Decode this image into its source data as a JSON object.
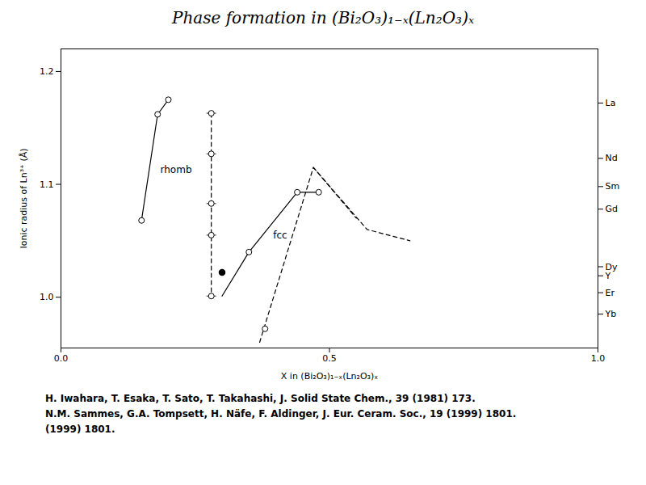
{
  "chart_data": {
    "type": "line",
    "title": "Phase formation in (Bi₂O₃)₁₋ₓ(Ln₂O₃)ₓ",
    "x_label": "X in (Bi₂O₃)₁₋ₓ(Ln₂O₃)ₓ",
    "y_label": "Ionic radius of Ln³⁺ (Å)",
    "xlim": [
      0,
      1.0
    ],
    "ylim": [
      0.955,
      1.22
    ],
    "xticks": [
      {
        "value": 0,
        "label": "0.0"
      },
      0.5,
      {
        "value": 1.0,
        "label": "1.0"
      }
    ],
    "yticks": [
      {
        "value": 1.0,
        "label": "1.0"
      },
      1.1,
      1.2
    ],
    "y2lim": [
      0.955,
      1.22
    ],
    "y2ticks": [
      {
        "value": 1.172,
        "label": "La"
      },
      {
        "value": 1.123,
        "label": "Nd"
      },
      {
        "value": 1.098,
        "label": "Sm"
      },
      {
        "value": 1.078,
        "label": "Gd"
      },
      {
        "value": 1.027,
        "label": "Dy"
      },
      {
        "value": 1.019,
        "label": "Y"
      },
      {
        "value": 1.004,
        "label": "Er"
      },
      {
        "value": 0.985,
        "label": "Yb"
      }
    ],
    "series": [
      {
        "type": "line",
        "x": [
          0.15,
          0.18,
          0.2
        ],
        "values": [
          1.068,
          1.162,
          1.175
        ],
        "line_style": "solid",
        "marker": "open_circle"
      },
      {
        "type": "line",
        "x": [
          0.28,
          0.28,
          0.28,
          0.28,
          0.28
        ],
        "values": [
          1.163,
          1.127,
          1.083,
          1.055,
          1.001
        ],
        "line_style": "dashed",
        "marker": "open_circle_tick"
      },
      {
        "type": "line",
        "x": [
          0.3,
          0.35,
          0.44,
          0.48
        ],
        "values": [
          1.001,
          1.04,
          1.093,
          1.093
        ],
        "line_style": "solid",
        "marker": "none"
      },
      {
        "type": "scatter",
        "x": [
          0.3
        ],
        "values": [
          1.022
        ],
        "marker": "filled_circle"
      },
      {
        "type": "scatter",
        "x": [
          0.35,
          0.44,
          0.48,
          0.38
        ],
        "values": [
          1.04,
          1.093,
          1.093,
          0.972
        ],
        "marker": "open_circle"
      },
      {
        "type": "line",
        "x": [
          0.37,
          0.47,
          0.55
        ],
        "values": [
          0.96,
          1.115,
          1.07
        ],
        "line_style": "dashed",
        "marker": "none"
      },
      {
        "type": "line",
        "x": [
          0.47,
          0.57,
          0.65
        ],
        "values": [
          1.115,
          1.06,
          1.05
        ],
        "line_style": "dashed",
        "marker": "none"
      }
    ],
    "annotations": [
      {
        "text": "rhomb",
        "x": 0.185,
        "y": 1.113
      },
      {
        "text": "fcc",
        "x": 0.395,
        "y": 1.055
      }
    ],
    "caption": [
      "H. Iwahara, T. Esaka, T. Sato, T. Takahashi, J. Solid State Chem., 39 (1981) 173.",
      "N.M. Sammes, G.A. Tompsett, H. Näfe, F. Aldinger, J. Eur. Ceram. Soc., 19 (1999) 1801.",
      "(1999) 1801."
    ]
  }
}
